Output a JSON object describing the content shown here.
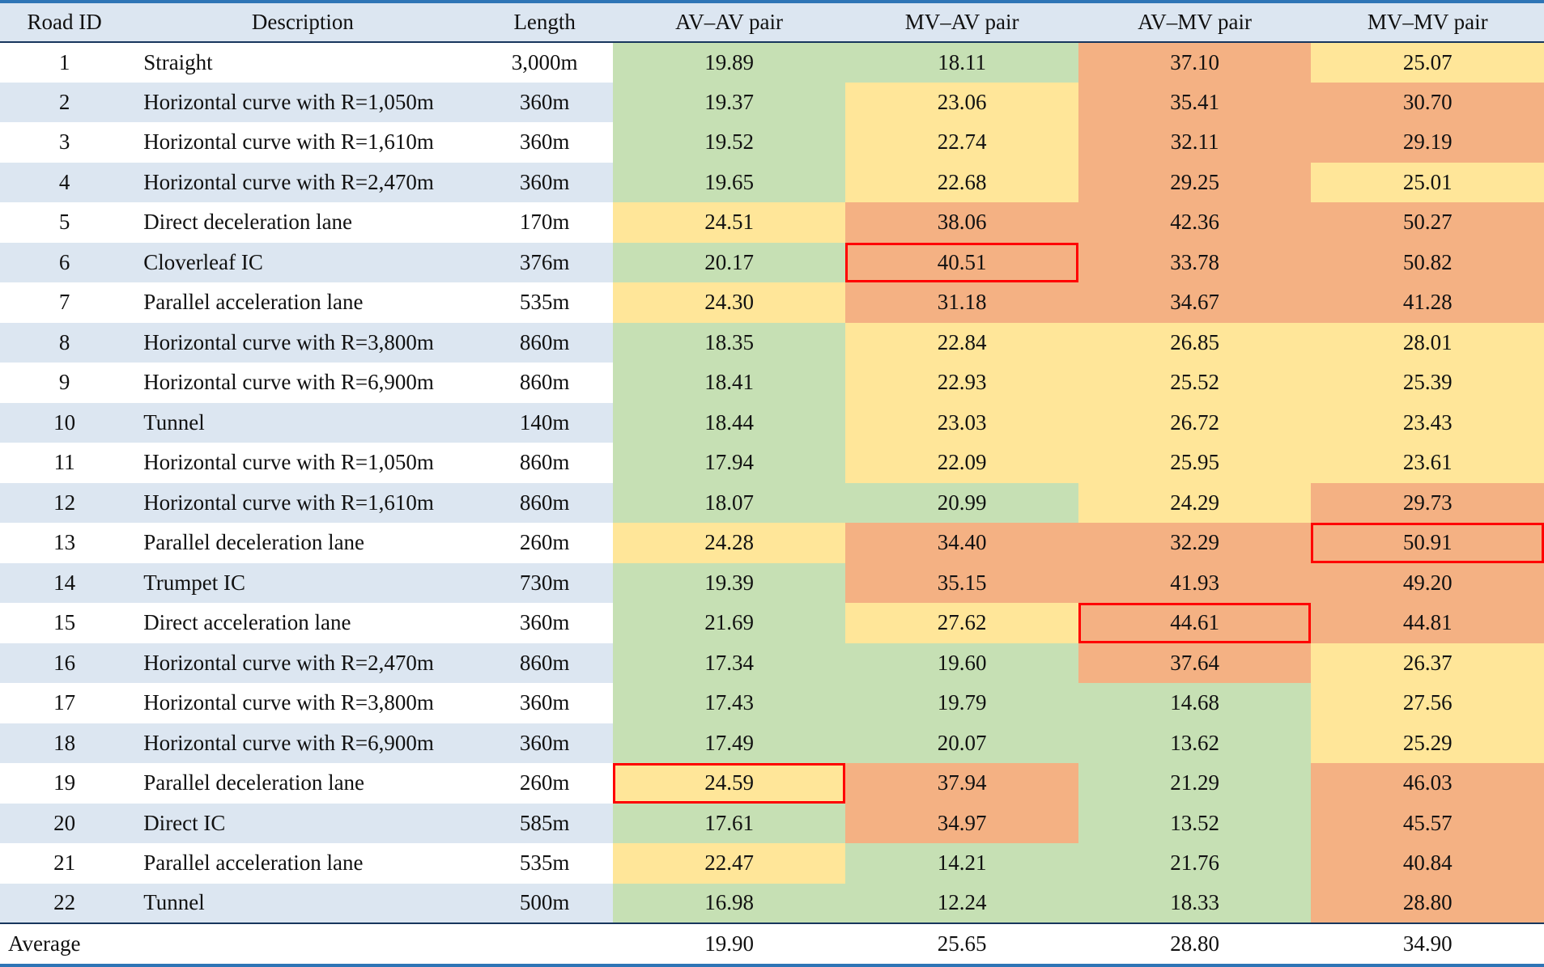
{
  "chart_data": {
    "type": "table",
    "title": "",
    "columns": [
      "Road ID",
      "Description",
      "Length",
      "AV–AV pair",
      "MV–AV pair",
      "AV–MV pair",
      "MV–MV pair"
    ],
    "legend_note": "cell fill encodes value: green=low, yellow=mid, orange=high; red boxes mark column maxima",
    "rows": [
      {
        "id": "1",
        "description": "Straight",
        "length": "3,000m",
        "values": [
          "19.89",
          "18.11",
          "37.10",
          "25.07"
        ],
        "colors": [
          "green",
          "green",
          "orange",
          "yellow"
        ],
        "highlight": null
      },
      {
        "id": "2",
        "description": "Horizontal curve with R=1,050m",
        "length": "360m",
        "values": [
          "19.37",
          "23.06",
          "35.41",
          "30.70"
        ],
        "colors": [
          "green",
          "yellow",
          "orange",
          "orange"
        ],
        "highlight": null
      },
      {
        "id": "3",
        "description": "Horizontal curve with R=1,610m",
        "length": "360m",
        "values": [
          "19.52",
          "22.74",
          "32.11",
          "29.19"
        ],
        "colors": [
          "green",
          "yellow",
          "orange",
          "orange"
        ],
        "highlight": null
      },
      {
        "id": "4",
        "description": "Horizontal curve with R=2,470m",
        "length": "360m",
        "values": [
          "19.65",
          "22.68",
          "29.25",
          "25.01"
        ],
        "colors": [
          "green",
          "yellow",
          "orange",
          "yellow"
        ],
        "highlight": null
      },
      {
        "id": "5",
        "description": "Direct deceleration lane",
        "length": "170m",
        "values": [
          "24.51",
          "38.06",
          "42.36",
          "50.27"
        ],
        "colors": [
          "yellow",
          "orange",
          "orange",
          "orange"
        ],
        "highlight": null
      },
      {
        "id": "6",
        "description": "Cloverleaf IC",
        "length": "376m",
        "values": [
          "20.17",
          "40.51",
          "33.78",
          "50.82"
        ],
        "colors": [
          "green",
          "orange",
          "orange",
          "orange"
        ],
        "highlight": 1
      },
      {
        "id": "7",
        "description": "Parallel acceleration lane",
        "length": "535m",
        "values": [
          "24.30",
          "31.18",
          "34.67",
          "41.28"
        ],
        "colors": [
          "yellow",
          "orange",
          "orange",
          "orange"
        ],
        "highlight": null
      },
      {
        "id": "8",
        "description": "Horizontal curve with R=3,800m",
        "length": "860m",
        "values": [
          "18.35",
          "22.84",
          "26.85",
          "28.01"
        ],
        "colors": [
          "green",
          "yellow",
          "yellow",
          "yellow"
        ],
        "highlight": null
      },
      {
        "id": "9",
        "description": "Horizontal curve with R=6,900m",
        "length": "860m",
        "values": [
          "18.41",
          "22.93",
          "25.52",
          "25.39"
        ],
        "colors": [
          "green",
          "yellow",
          "yellow",
          "yellow"
        ],
        "highlight": null
      },
      {
        "id": "10",
        "description": "Tunnel",
        "length": "140m",
        "values": [
          "18.44",
          "23.03",
          "26.72",
          "23.43"
        ],
        "colors": [
          "green",
          "yellow",
          "yellow",
          "yellow"
        ],
        "highlight": null
      },
      {
        "id": "11",
        "description": "Horizontal curve with R=1,050m",
        "length": "860m",
        "values": [
          "17.94",
          "22.09",
          "25.95",
          "23.61"
        ],
        "colors": [
          "green",
          "yellow",
          "yellow",
          "yellow"
        ],
        "highlight": null
      },
      {
        "id": "12",
        "description": "Horizontal curve with R=1,610m",
        "length": "860m",
        "values": [
          "18.07",
          "20.99",
          "24.29",
          "29.73"
        ],
        "colors": [
          "green",
          "green",
          "yellow",
          "orange"
        ],
        "highlight": null
      },
      {
        "id": "13",
        "description": "Parallel deceleration lane",
        "length": "260m",
        "values": [
          "24.28",
          "34.40",
          "32.29",
          "50.91"
        ],
        "colors": [
          "yellow",
          "orange",
          "orange",
          "orange"
        ],
        "highlight": 3
      },
      {
        "id": "14",
        "description": "Trumpet IC",
        "length": "730m",
        "values": [
          "19.39",
          "35.15",
          "41.93",
          "49.20"
        ],
        "colors": [
          "green",
          "orange",
          "orange",
          "orange"
        ],
        "highlight": null
      },
      {
        "id": "15",
        "description": "Direct acceleration lane",
        "length": "360m",
        "values": [
          "21.69",
          "27.62",
          "44.61",
          "44.81"
        ],
        "colors": [
          "green",
          "yellow",
          "orange",
          "orange"
        ],
        "highlight": 2
      },
      {
        "id": "16",
        "description": "Horizontal curve with R=2,470m",
        "length": "860m",
        "values": [
          "17.34",
          "19.60",
          "37.64",
          "26.37"
        ],
        "colors": [
          "green",
          "green",
          "orange",
          "yellow"
        ],
        "highlight": null
      },
      {
        "id": "17",
        "description": "Horizontal curve with R=3,800m",
        "length": "360m",
        "values": [
          "17.43",
          "19.79",
          "14.68",
          "27.56"
        ],
        "colors": [
          "green",
          "green",
          "green",
          "yellow"
        ],
        "highlight": null
      },
      {
        "id": "18",
        "description": "Horizontal curve with R=6,900m",
        "length": "360m",
        "values": [
          "17.49",
          "20.07",
          "13.62",
          "25.29"
        ],
        "colors": [
          "green",
          "green",
          "green",
          "yellow"
        ],
        "highlight": null
      },
      {
        "id": "19",
        "description": "Parallel deceleration lane",
        "length": "260m",
        "values": [
          "24.59",
          "37.94",
          "21.29",
          "46.03"
        ],
        "colors": [
          "yellow",
          "orange",
          "green",
          "orange"
        ],
        "highlight": 0
      },
      {
        "id": "20",
        "description": "Direct IC",
        "length": "585m",
        "values": [
          "17.61",
          "34.97",
          "13.52",
          "45.57"
        ],
        "colors": [
          "green",
          "orange",
          "green",
          "orange"
        ],
        "highlight": null
      },
      {
        "id": "21",
        "description": "Parallel acceleration lane",
        "length": "535m",
        "values": [
          "22.47",
          "14.21",
          "21.76",
          "40.84"
        ],
        "colors": [
          "yellow",
          "green",
          "green",
          "orange"
        ],
        "highlight": null
      },
      {
        "id": "22",
        "description": "Tunnel",
        "length": "500m",
        "values": [
          "16.98",
          "12.24",
          "18.33",
          "28.80"
        ],
        "colors": [
          "green",
          "green",
          "green",
          "orange"
        ],
        "highlight": null
      }
    ],
    "average_row": {
      "label": "Average",
      "values": [
        "19.90",
        "25.65",
        "28.80",
        "34.90"
      ]
    }
  },
  "colors": {
    "cell_green": "#c6e0b4",
    "cell_yellow": "#ffe699",
    "cell_orange": "#f4b183",
    "row_stripe_blue": "#dce6f1",
    "header_bg": "#dce6f1",
    "rule_blue": "#2e75b6",
    "rule_dark": "#17365d",
    "highlight_red": "#ff0000"
  }
}
